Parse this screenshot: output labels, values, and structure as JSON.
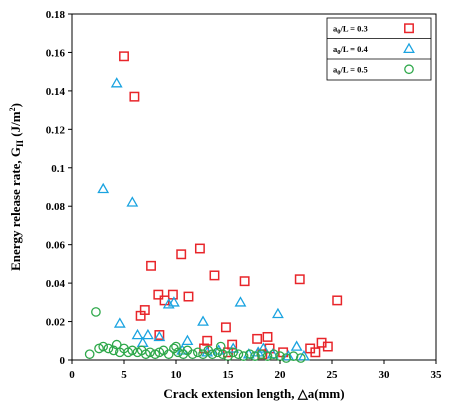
{
  "chart_data": {
    "type": "scatter",
    "xlabel": "Crack extension length, △a(mm)",
    "ylabel_main": "Energy release rate, G",
    "ylabel_sub": "II",
    "ylabel_unit": " (J/m",
    "ylabel_sup": "2",
    "ylabel_close": ")",
    "xlim": [
      0,
      35
    ],
    "ylim": [
      0,
      0.18
    ],
    "xticks": [
      0,
      5,
      10,
      15,
      20,
      25,
      30,
      35
    ],
    "yticks": [
      0,
      0.02,
      0.04,
      0.06,
      0.08,
      0.1,
      0.12,
      0.14,
      0.16,
      0.18
    ],
    "ytick_labels": [
      "0",
      "0.02",
      "0.04",
      "0.06",
      "0.08",
      "0.1",
      "0.12",
      "0.14",
      "0.16",
      "0.18"
    ],
    "grid": false,
    "legend_position": "top-right",
    "series": [
      {
        "name_main": "a",
        "name_sub": "0",
        "name_rest": "/L = 0.3",
        "marker": "square",
        "color": "#e8252a",
        "points": [
          [
            5.0,
            0.158
          ],
          [
            6.0,
            0.137
          ],
          [
            6.6,
            0.023
          ],
          [
            7.0,
            0.026
          ],
          [
            7.6,
            0.049
          ],
          [
            8.3,
            0.034
          ],
          [
            8.4,
            0.013
          ],
          [
            8.9,
            0.031
          ],
          [
            9.7,
            0.034
          ],
          [
            10.5,
            0.055
          ],
          [
            11.2,
            0.033
          ],
          [
            12.3,
            0.058
          ],
          [
            12.7,
            0.006
          ],
          [
            13.0,
            0.01
          ],
          [
            13.7,
            0.044
          ],
          [
            14.8,
            0.017
          ],
          [
            15.4,
            0.008
          ],
          [
            16.6,
            0.041
          ],
          [
            17.8,
            0.011
          ],
          [
            18.8,
            0.012
          ],
          [
            19.0,
            0.006
          ],
          [
            20.3,
            0.004
          ],
          [
            21.9,
            0.042
          ],
          [
            22.9,
            0.006
          ],
          [
            23.4,
            0.004
          ],
          [
            24.0,
            0.009
          ],
          [
            24.6,
            0.007
          ],
          [
            25.5,
            0.031
          ],
          [
            15.0,
            0.004
          ],
          [
            18.3,
            0.003
          ]
        ]
      },
      {
        "name_main": "a",
        "name_sub": "0",
        "name_rest": "/L = 0.4",
        "marker": "triangle",
        "color": "#1aa3e0",
        "points": [
          [
            3.0,
            0.089
          ],
          [
            4.3,
            0.144
          ],
          [
            4.6,
            0.019
          ],
          [
            5.8,
            0.082
          ],
          [
            6.3,
            0.013
          ],
          [
            6.8,
            0.009
          ],
          [
            7.3,
            0.013
          ],
          [
            8.4,
            0.012
          ],
          [
            9.3,
            0.029
          ],
          [
            9.8,
            0.03
          ],
          [
            10.6,
            0.005
          ],
          [
            11.1,
            0.01
          ],
          [
            12.6,
            0.02
          ],
          [
            13.0,
            0.004
          ],
          [
            14.1,
            0.005
          ],
          [
            15.5,
            0.006
          ],
          [
            16.2,
            0.03
          ],
          [
            17.0,
            0.003
          ],
          [
            17.9,
            0.004
          ],
          [
            18.4,
            0.006
          ],
          [
            19.3,
            0.003
          ],
          [
            19.8,
            0.024
          ],
          [
            20.8,
            0.002
          ],
          [
            21.6,
            0.007
          ],
          [
            22.3,
            0.002
          ]
        ]
      },
      {
        "name_main": "a",
        "name_sub": "0",
        "name_rest": "/L = 0.5",
        "marker": "circle",
        "color": "#2ea84a",
        "points": [
          [
            1.7,
            0.003
          ],
          [
            2.3,
            0.025
          ],
          [
            2.6,
            0.006
          ],
          [
            3.0,
            0.007
          ],
          [
            3.5,
            0.006
          ],
          [
            4.0,
            0.005
          ],
          [
            4.3,
            0.008
          ],
          [
            4.6,
            0.004
          ],
          [
            5.0,
            0.006
          ],
          [
            5.4,
            0.004
          ],
          [
            5.8,
            0.005
          ],
          [
            6.3,
            0.004
          ],
          [
            6.7,
            0.005
          ],
          [
            7.1,
            0.003
          ],
          [
            7.5,
            0.004
          ],
          [
            8.0,
            0.003
          ],
          [
            8.4,
            0.004
          ],
          [
            8.8,
            0.005
          ],
          [
            9.3,
            0.003
          ],
          [
            9.8,
            0.006
          ],
          [
            10.2,
            0.004
          ],
          [
            10.7,
            0.003
          ],
          [
            11.1,
            0.005
          ],
          [
            11.6,
            0.003
          ],
          [
            12.1,
            0.004
          ],
          [
            12.6,
            0.003
          ],
          [
            13.1,
            0.005
          ],
          [
            13.5,
            0.003
          ],
          [
            14.0,
            0.004
          ],
          [
            14.5,
            0.003
          ],
          [
            15.0,
            0.002
          ],
          [
            15.5,
            0.004
          ],
          [
            16.0,
            0.003
          ],
          [
            16.5,
            0.002
          ],
          [
            17.1,
            0.003
          ],
          [
            17.6,
            0.002
          ],
          [
            18.2,
            0.003
          ],
          [
            18.8,
            0.002
          ],
          [
            19.4,
            0.003
          ],
          [
            20.0,
            0.002
          ],
          [
            20.6,
            0.001
          ],
          [
            21.3,
            0.002
          ],
          [
            22.0,
            0.001
          ],
          [
            14.3,
            0.007
          ],
          [
            10.0,
            0.007
          ]
        ]
      }
    ]
  }
}
